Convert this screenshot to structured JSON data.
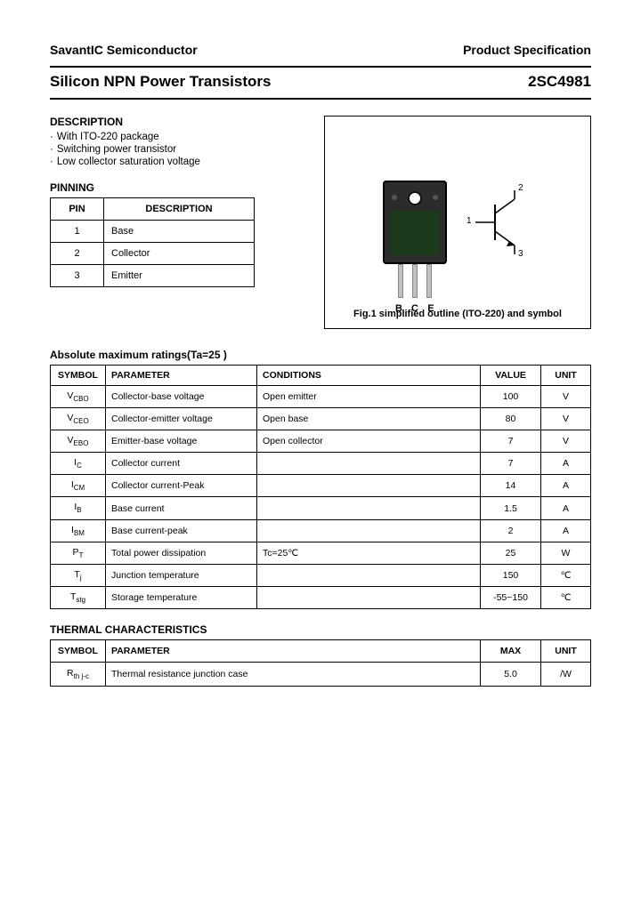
{
  "header": {
    "left": "SavantIC Semiconductor",
    "right": "Product Specification"
  },
  "title": {
    "left": "Silicon NPN Power Transistors",
    "right": "2SC4981"
  },
  "description": {
    "heading": "DESCRIPTION",
    "items": [
      "With ITO-220 package",
      "Switching power transistor",
      "Low collector saturation voltage"
    ]
  },
  "pinning": {
    "heading": "PINNING",
    "columns": [
      "PIN",
      "DESCRIPTION"
    ],
    "rows": [
      {
        "pin": "1",
        "desc": "Base"
      },
      {
        "pin": "2",
        "desc": "Collector"
      },
      {
        "pin": "3",
        "desc": "Emitter"
      }
    ]
  },
  "figure": {
    "lead_labels": [
      "B",
      "C",
      "E"
    ],
    "sym_labels": {
      "one": "1",
      "two": "2",
      "three": "3"
    },
    "caption": "Fig.1 simplified outline (ITO-220) and symbol"
  },
  "amr": {
    "heading": "Absolute maximum ratings(Ta=25 )",
    "columns": [
      "SYMBOL",
      "PARAMETER",
      "CONDITIONS",
      "VALUE",
      "UNIT"
    ],
    "rows": [
      {
        "sym": "V",
        "sub": "CBO",
        "param": "Collector-base voltage",
        "cond": "Open emitter",
        "val": "100",
        "unit": "V"
      },
      {
        "sym": "V",
        "sub": "CEO",
        "param": "Collector-emitter voltage",
        "cond": "Open base",
        "val": "80",
        "unit": "V"
      },
      {
        "sym": "V",
        "sub": "EBO",
        "param": "Emitter-base voltage",
        "cond": "Open collector",
        "val": "7",
        "unit": "V"
      },
      {
        "sym": "I",
        "sub": "C",
        "param": "Collector current",
        "cond": "",
        "val": "7",
        "unit": "A"
      },
      {
        "sym": "I",
        "sub": "CM",
        "param": "Collector current-Peak",
        "cond": "",
        "val": "14",
        "unit": "A"
      },
      {
        "sym": "I",
        "sub": "B",
        "param": "Base current",
        "cond": "",
        "val": "1.5",
        "unit": "A"
      },
      {
        "sym": "I",
        "sub": "BM",
        "param": "Base current-peak",
        "cond": "",
        "val": "2",
        "unit": "A"
      },
      {
        "sym": "P",
        "sub": "T",
        "param": "Total power dissipation",
        "cond": "Tc=25℃",
        "val": "25",
        "unit": "W"
      },
      {
        "sym": "T",
        "sub": "j",
        "param": "Junction temperature",
        "cond": "",
        "val": "150",
        "unit": "℃"
      },
      {
        "sym": "T",
        "sub": "stg",
        "param": "Storage temperature",
        "cond": "",
        "val": "-55~150",
        "unit": "℃"
      }
    ]
  },
  "thermal": {
    "heading": "THERMAL CHARACTERISTICS",
    "columns": [
      "SYMBOL",
      "PARAMETER",
      "MAX",
      "UNIT"
    ],
    "rows": [
      {
        "sym": "R",
        "sub": "th j-c",
        "param": "Thermal resistance junction case",
        "max": "5.0",
        "unit": "/W"
      }
    ]
  },
  "style": {
    "page_bg": "#ffffff",
    "text_color": "#000000",
    "border_color": "#000000",
    "pkg_color": "#2c2c2c",
    "pkg_body_color": "#1b3a1b",
    "lead_color": "#bfbfbf"
  }
}
